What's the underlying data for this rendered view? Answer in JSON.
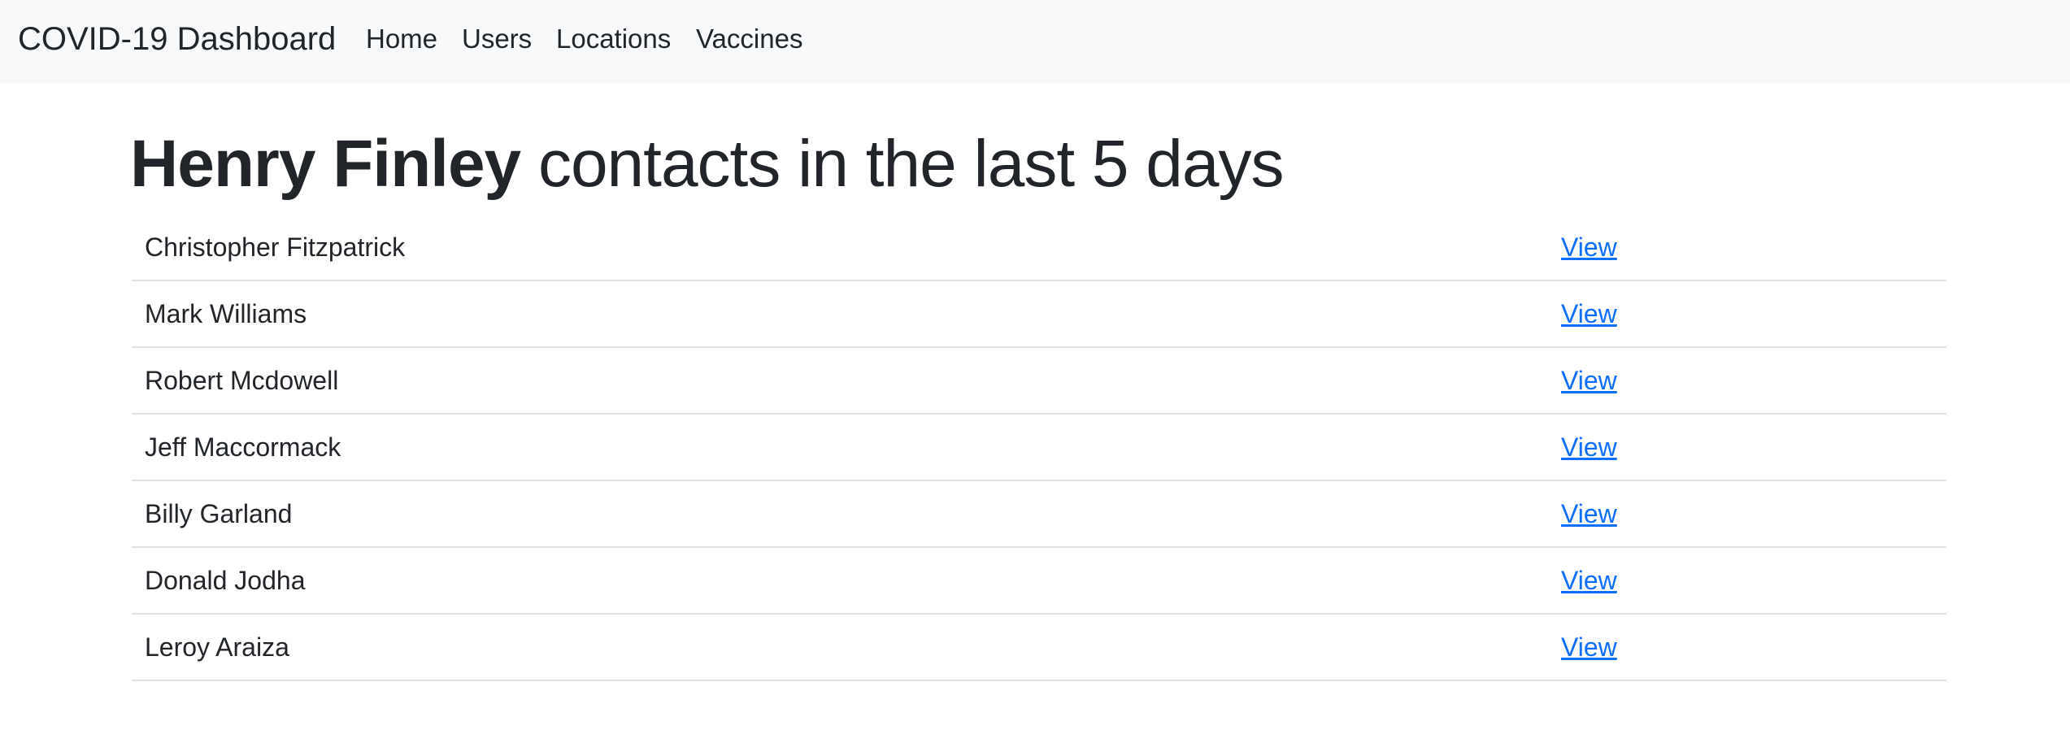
{
  "navbar": {
    "brand": "COVID-19 Dashboard",
    "links": [
      "Home",
      "Users",
      "Locations",
      "Vaccines"
    ]
  },
  "page": {
    "title_name": "Henry Finley",
    "title_rest": " contacts in the last 5 days"
  },
  "contacts": [
    {
      "name": "Christopher Fitzpatrick",
      "action": "View"
    },
    {
      "name": "Mark Williams",
      "action": "View"
    },
    {
      "name": "Robert Mcdowell",
      "action": "View"
    },
    {
      "name": "Jeff Maccormack",
      "action": "View"
    },
    {
      "name": "Billy Garland",
      "action": "View"
    },
    {
      "name": "Donald Jodha",
      "action": "View"
    },
    {
      "name": "Leroy Araiza",
      "action": "View"
    }
  ],
  "colors": {
    "navbar_bg": "#f8f9fa",
    "text": "#212529",
    "link": "#0d6efd",
    "divider": "#dee2e6"
  }
}
